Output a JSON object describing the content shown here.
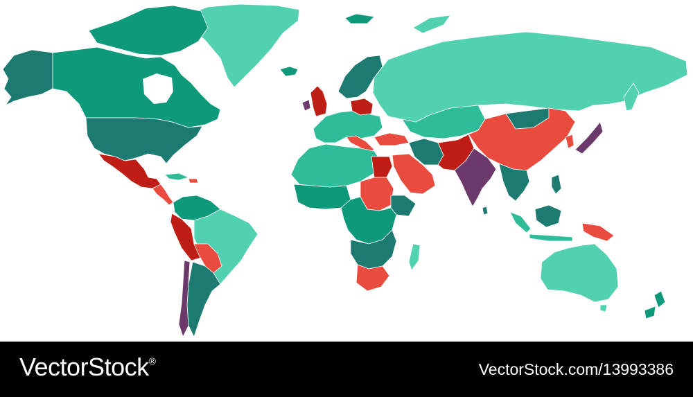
{
  "palette": {
    "teal_dark": "#1c7a71",
    "green": "#0e9a7a",
    "mint": "#52d1b1",
    "mint_mid": "#2ebd98",
    "red": "#e94c3e",
    "red_dark": "#be1e15",
    "purple": "#6b3a6b"
  },
  "watermark": {
    "brand": "VectorStock",
    "registered_mark": "®",
    "image_id": "VectorStock.com/13993386"
  }
}
